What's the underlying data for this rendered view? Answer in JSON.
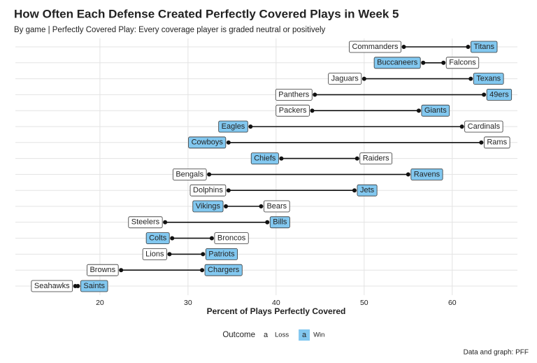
{
  "chart_data": {
    "type": "dumbbell",
    "title": "How Often Each Defense Created Perfectly Covered Plays in Week 5",
    "subtitle": "By game   |   Perfectly Covered Play: Every coverage player is graded neutral or positively",
    "xlabel": "Percent of Plays Perfectly Covered",
    "caption": "Data and graph: PFF",
    "legend_title": "Outcome",
    "legend_key_text": "a",
    "xlim": [
      10.4,
      67.4
    ],
    "xticks": [
      20,
      30,
      40,
      50,
      60
    ],
    "grid": true,
    "series": [
      {
        "name": "Loss",
        "color": "#ffffff",
        "labels": [
          "Commanders",
          "Falcons",
          "Jaguars",
          "Panthers",
          "Packers",
          "Cardinals",
          "Rams",
          "Raiders",
          "Bengals",
          "Dolphins",
          "Bears",
          "Steelers",
          "Broncos",
          "Lions",
          "Browns",
          "Seahawks"
        ],
        "values": [
          54.5,
          59.0,
          50.0,
          44.4,
          44.1,
          61.1,
          63.3,
          49.2,
          32.4,
          34.6,
          38.3,
          27.4,
          32.7,
          27.9,
          22.4,
          17.2
        ]
      },
      {
        "name": "Win",
        "color": "#82c8f0",
        "labels": [
          "Titans",
          "Buccaneers",
          "Texans",
          "49ers",
          "Giants",
          "Eagles",
          "Cowboys",
          "Chiefs",
          "Ravens",
          "Jets",
          "Vikings",
          "Bills",
          "Colts",
          "Patriots",
          "Chargers",
          "Saints"
        ],
        "values": [
          61.8,
          56.7,
          62.1,
          63.6,
          56.2,
          37.1,
          34.6,
          40.6,
          55.0,
          48.9,
          34.3,
          39.0,
          28.2,
          31.7,
          31.6,
          17.5
        ]
      }
    ]
  }
}
